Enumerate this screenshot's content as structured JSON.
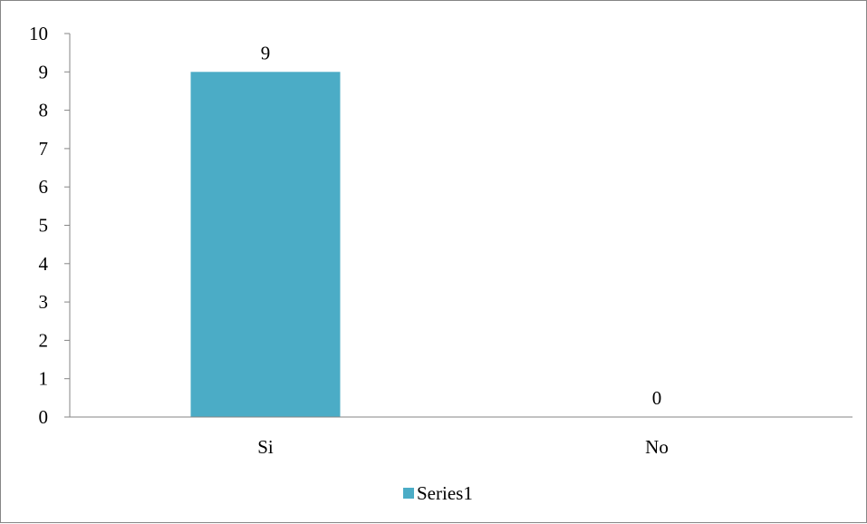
{
  "chart_data": {
    "type": "bar",
    "categories": [
      "Si",
      "No"
    ],
    "series": [
      {
        "name": "Series1",
        "values": [
          9,
          0
        ],
        "color": "#4BACC6"
      }
    ],
    "data_labels": [
      "9",
      "0"
    ],
    "yticks": [
      "0",
      "1",
      "2",
      "3",
      "4",
      "5",
      "6",
      "7",
      "8",
      "9",
      "10"
    ],
    "ylim": [
      0,
      10
    ],
    "grid": false,
    "legend_position": "bottom",
    "axis_color": "#868686"
  }
}
